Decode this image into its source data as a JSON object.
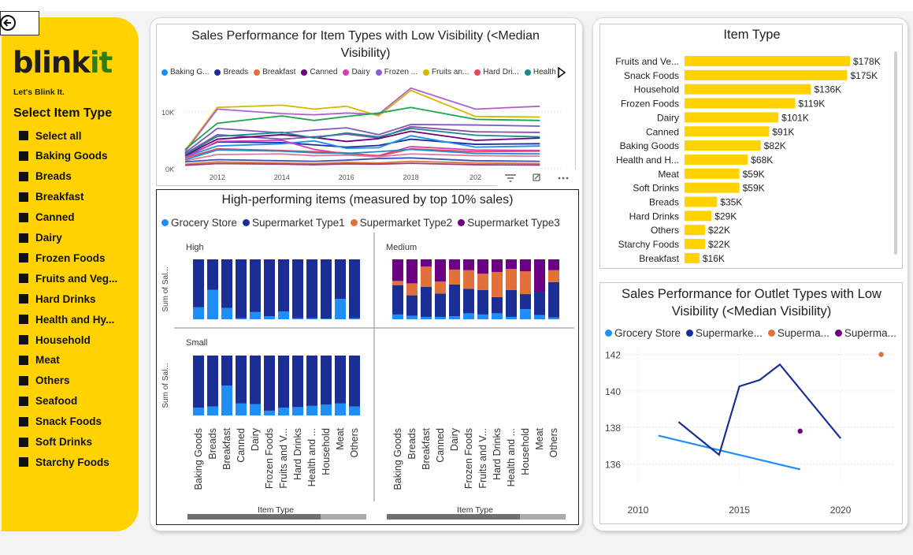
{
  "app": {
    "back_icon": "back-arrow-icon"
  },
  "sidebar": {
    "logo_part1": "blink",
    "logo_part2": "it",
    "tagline": "Let's Blink It.",
    "slicer_title": "Select Item Type",
    "items": [
      "Select all",
      "Baking Goods",
      "Breads",
      "Breakfast",
      "Canned",
      "Dairy",
      "Frozen Foods",
      "Fruits and Veg...",
      "Hard Drinks",
      "Health and Hy...",
      "Household",
      "Meat",
      "Others",
      "Seafood",
      "Snack Foods",
      "Soft Drinks",
      "Starchy Foods"
    ]
  },
  "colors": {
    "brand_yellow": "#ffd200",
    "grocery": "#1f8ff5",
    "type1": "#1a2e96",
    "type2": "#e2703a",
    "type3": "#6b0080"
  },
  "chart_data": [
    {
      "id": "low_vis_items",
      "type": "line",
      "title": "Sales Performance for Item Types with Low Visibility (<Median Visibility)",
      "legend": [
        "Baking G...",
        "Breads",
        "Breakfast",
        "Canned",
        "Dairy",
        "Frozen ...",
        "Fruits an...",
        "Hard Dri...",
        "Health a..."
      ],
      "legend_colors": [
        "#1f8ff5",
        "#1a2e96",
        "#e2703a",
        "#6b0080",
        "#d63fb0",
        "#8a5ed6",
        "#d4b800",
        "#e34a5a",
        "#1b8a8a"
      ],
      "x": [
        2011,
        2012,
        2014,
        2015,
        2016,
        2017,
        2018,
        2020,
        2022
      ],
      "x_ticks": [
        "2012",
        "2014",
        "2016",
        "2018",
        "202"
      ],
      "y_ticks": [
        "0K",
        "10K"
      ],
      "ylim": [
        0,
        15000
      ],
      "series": [
        {
          "color": "#d4b800",
          "values": [
            3200,
            10800,
            11200,
            10500,
            11000,
            9300,
            13800,
            9200,
            9100
          ]
        },
        {
          "color": "#b05fd0",
          "values": [
            3000,
            10500,
            9700,
            9500,
            9800,
            9600,
            14200,
            10500,
            11000
          ]
        },
        {
          "color": "#1ca64b",
          "values": [
            3400,
            8000,
            9300,
            8500,
            9200,
            9800,
            10800,
            8700,
            8500
          ]
        },
        {
          "color": "#7e57c2",
          "values": [
            2800,
            7100,
            6300,
            6800,
            7200,
            6000,
            7800,
            7700,
            7500
          ]
        },
        {
          "color": "#8a4fb0",
          "values": [
            2600,
            6000,
            5200,
            5600,
            6100,
            5400,
            7400,
            6500,
            6400
          ]
        },
        {
          "color": "#6b0080",
          "values": [
            2400,
            5200,
            6000,
            5500,
            4800,
            5300,
            6600,
            5000,
            5400
          ]
        },
        {
          "color": "#1b8a8a",
          "values": [
            2500,
            5700,
            6400,
            5400,
            6300,
            5600,
            7100,
            5900,
            5600
          ]
        },
        {
          "color": "#1a2e96",
          "values": [
            2200,
            4700,
            4600,
            4200,
            3800,
            4100,
            5200,
            4300,
            4400
          ]
        },
        {
          "color": "#1f8ff5",
          "values": [
            2100,
            4000,
            4400,
            4900,
            3600,
            3700,
            5800,
            3800,
            4000
          ]
        },
        {
          "color": "#d63fb0",
          "values": [
            2000,
            4800,
            5000,
            3400,
            2600,
            2300,
            3900,
            3300,
            3200
          ]
        },
        {
          "color": "#e34a5a",
          "values": [
            1900,
            3500,
            3200,
            3000,
            2800,
            2200,
            3500,
            3000,
            3100
          ]
        },
        {
          "color": "#1a8fd0",
          "values": [
            1600,
            3300,
            3100,
            2800,
            2700,
            3000,
            3400,
            2700,
            2600
          ]
        },
        {
          "color": "#d97b9e",
          "values": [
            1400,
            2500,
            2600,
            2300,
            2400,
            2100,
            2600,
            2300,
            2200
          ]
        },
        {
          "color": "#3f51b5",
          "values": [
            1200,
            1600,
            1400,
            1300,
            1500,
            1800,
            1900,
            1400,
            1300
          ]
        },
        {
          "color": "#e2703a",
          "values": [
            800,
            1200,
            1000,
            900,
            1100,
            1000,
            1300,
            1000,
            900
          ]
        },
        {
          "color": "#a03a7a",
          "values": [
            600,
            900,
            800,
            700,
            850,
            800,
            950,
            700,
            650
          ]
        }
      ]
    },
    {
      "id": "high_perf",
      "type": "bar",
      "title": "High-performing items (measured by top 10% sales)",
      "legend": [
        "Grocery Store",
        "Supermarket Type1",
        "Supermarket Type2",
        "Supermarket Type3"
      ],
      "categories": [
        "Baking Goods",
        "Breads",
        "Breakfast",
        "Canned",
        "Dairy",
        "Frozen Foods",
        "Fruits and V...",
        "Hard Drinks",
        "Health and ...",
        "Household",
        "Meat",
        "Others"
      ],
      "ylabel": "Sum of Sal...",
      "xlabel": "Item Type",
      "panels": [
        {
          "label": "High",
          "grocery": [
            0.2,
            0.49,
            0.19,
            0.02,
            0.12,
            0.05,
            0.13,
            0.02,
            0.02,
            0.01,
            0.34,
            0.02
          ],
          "type1": [
            0.8,
            0.51,
            0.81,
            0.98,
            0.88,
            0.95,
            0.87,
            0.98,
            0.98,
            0.99,
            0.66,
            0.98
          ],
          "type2": [
            0,
            0,
            0,
            0,
            0,
            0,
            0,
            0,
            0,
            0,
            0,
            0
          ],
          "type3": [
            0,
            0,
            0,
            0,
            0,
            0,
            0,
            0,
            0,
            0,
            0,
            0
          ]
        },
        {
          "label": "Medium",
          "grocery": [
            0.08,
            0.06,
            0.04,
            0.04,
            0.05,
            0.1,
            0.08,
            0.1,
            0.04,
            0.17,
            0.07,
            0.03
          ],
          "type1": [
            0.49,
            0.34,
            0.5,
            0.39,
            0.53,
            0.41,
            0.41,
            0.27,
            0.45,
            0.25,
            0.39,
            0.59
          ],
          "type2": [
            0.07,
            0.2,
            0.34,
            0.2,
            0.25,
            0.31,
            0.27,
            0.42,
            0.35,
            0.38,
            0,
            0.2
          ],
          "type3": [
            0.36,
            0.4,
            0.12,
            0.37,
            0.17,
            0.18,
            0.24,
            0.21,
            0.16,
            0.2,
            0.54,
            0.18
          ]
        },
        {
          "label": "Small",
          "grocery": [
            0.13,
            0.15,
            0.5,
            0.2,
            0.19,
            0.08,
            0.13,
            0.14,
            0.16,
            0.18,
            0.2,
            0.15
          ],
          "type1": [
            0.87,
            0.85,
            0.5,
            0.8,
            0.81,
            0.92,
            0.87,
            0.86,
            0.84,
            0.82,
            0.8,
            0.85
          ],
          "type2": [
            0,
            0,
            0,
            0,
            0,
            0,
            0,
            0,
            0,
            0,
            0,
            0
          ],
          "type3": [
            0,
            0,
            0,
            0,
            0,
            0,
            0,
            0,
            0,
            0,
            0,
            0
          ]
        }
      ]
    },
    {
      "id": "item_type",
      "type": "bar",
      "orientation": "horizontal",
      "title": "Item Type",
      "categories": [
        "Fruits and Ve...",
        "Snack Foods",
        "Household",
        "Frozen Foods",
        "Dairy",
        "Canned",
        "Baking Goods",
        "Health and H...",
        "Meat",
        "Soft Drinks",
        "Breads",
        "Hard Drinks",
        "Others",
        "Starchy Foods",
        "Breakfast"
      ],
      "values": [
        178,
        175,
        136,
        119,
        101,
        91,
        82,
        68,
        59,
        59,
        35,
        29,
        22,
        22,
        16
      ],
      "labels": [
        "$178K",
        "$175K",
        "$136K",
        "$119K",
        "$101K",
        "$91K",
        "$82K",
        "$68K",
        "$59K",
        "$59K",
        "$35K",
        "$29K",
        "$22K",
        "$22K",
        "$16K"
      ],
      "units": "$K",
      "color": "#ffd200"
    },
    {
      "id": "low_vis_outlets",
      "type": "line",
      "title": "Sales Performance for Outlet Types with Low Visibility (<Median Visibility)",
      "legend": [
        "Grocery Store",
        "Supermarke...",
        "Superma...",
        "Superma..."
      ],
      "legend_colors": [
        "#1f8ff5",
        "#1a2e96",
        "#e2703a",
        "#6b0080"
      ],
      "xlim": [
        2009.3,
        2022.6
      ],
      "ylim": [
        135.2,
        142.2
      ],
      "x_ticks": [
        "2010",
        "2015",
        "2020"
      ],
      "y_ticks": [
        "136",
        "138",
        "140",
        "142"
      ],
      "series": [
        {
          "name": "Grocery Store",
          "color": "#1f8ff5",
          "points": [
            [
              2011,
              137.55
            ],
            [
              2018,
              135.7
            ]
          ]
        },
        {
          "name": "Supermarket Type1",
          "color": "#1a2e96",
          "points": [
            [
              2012,
              138.3
            ],
            [
              2014,
              136.5
            ],
            [
              2015,
              140.25
            ],
            [
              2016,
              140.6
            ],
            [
              2017,
              141.45
            ],
            [
              2020,
              137.4
            ]
          ]
        },
        {
          "name": "Supermarket Type2",
          "color": "#e2703a",
          "points": [
            [
              2022,
              142
            ]
          ],
          "marker": true
        },
        {
          "name": "Supermarket Type3",
          "color": "#6b0080",
          "points": [
            [
              2018,
              137.8
            ]
          ],
          "marker": true
        }
      ]
    }
  ]
}
